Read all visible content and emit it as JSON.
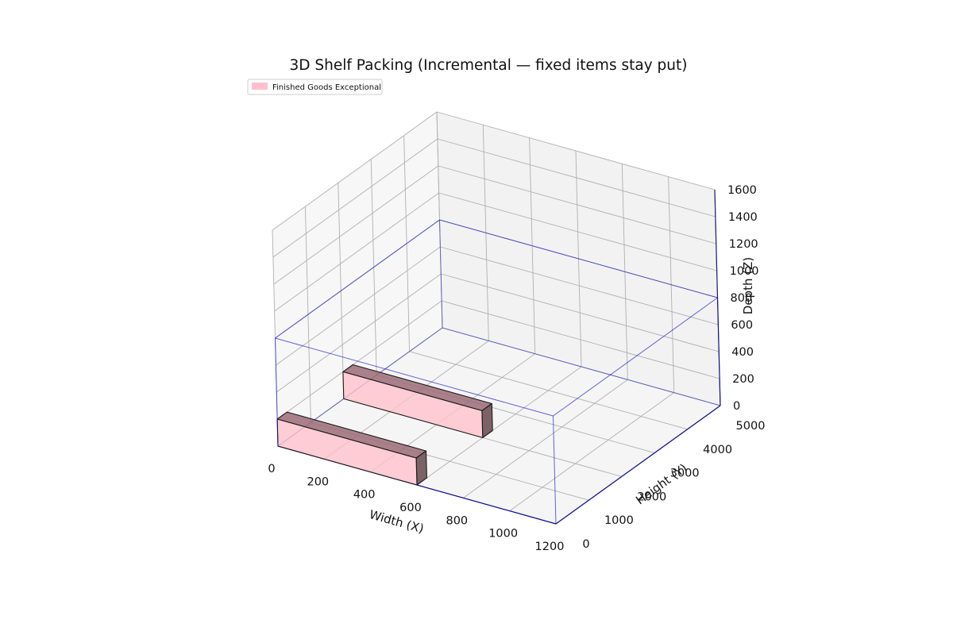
{
  "chart_data": {
    "type": "3d-box",
    "title": "3D Shelf Packing (Incremental — fixed items stay put)",
    "xlabel": "Width (X)",
    "ylabel": "Height (Y)",
    "zlabel": "Depth (Z)",
    "xlim": [
      0,
      1200
    ],
    "ylim": [
      0,
      5000
    ],
    "zlim": [
      0,
      1600
    ],
    "x_ticks": [
      0,
      200,
      400,
      600,
      800,
      1000,
      1200
    ],
    "y_ticks": [
      0,
      1000,
      2000,
      3000,
      4000,
      5000
    ],
    "z_ticks": [
      0,
      200,
      400,
      600,
      800,
      1000,
      1200,
      1400,
      1600
    ],
    "grid": true,
    "legend_position": "top-left",
    "legend": [
      {
        "label": "Finished Goods Exceptional",
        "color": "#ffc0cb"
      }
    ],
    "container": {
      "width": 1200,
      "height": 5000,
      "depth": 800,
      "edge_color": "#0000cc"
    },
    "items": [
      {
        "series": "Finished Goods Exceptional",
        "x": 0,
        "y": 0,
        "z": 0,
        "w": 600,
        "h": 300,
        "d": 200,
        "color": "#ffc0cb"
      },
      {
        "series": "Finished Goods Exceptional",
        "x": 0,
        "y": 2000,
        "z": 0,
        "w": 600,
        "h": 300,
        "d": 200,
        "color": "#ffc0cb"
      }
    ]
  }
}
